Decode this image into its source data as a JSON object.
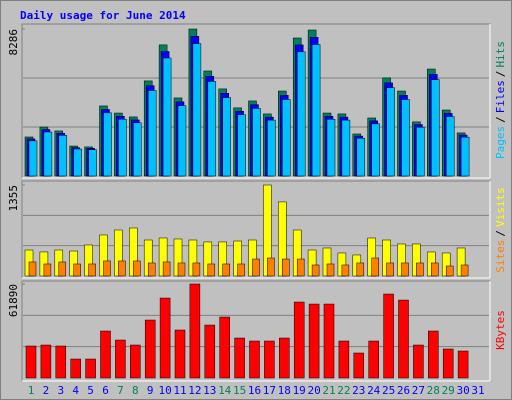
{
  "chart_data": [
    {
      "type": "bar",
      "title": "Daily usage for June 2014",
      "legend_separator": "/",
      "ylim": [
        0,
        8286
      ],
      "yticks": [
        8286
      ],
      "series": [
        {
          "name": "Hits",
          "color": "#00805c",
          "values": [
            2200,
            2760,
            2540,
            1690,
            1640,
            3950,
            3550,
            3330,
            5360,
            7390,
            4400,
            8286,
            5920,
            4910,
            3840,
            4230,
            3500,
            4790,
            7780,
            8230,
            3550,
            3500,
            2370,
            3270,
            5530,
            4790,
            3050,
            6030,
            3720,
            2430,
            null
          ]
        },
        {
          "name": "Files",
          "color": "#0000ff",
          "values": [
            2090,
            2620,
            2410,
            1600,
            1560,
            3750,
            3370,
            3160,
            5090,
            7020,
            4180,
            7870,
            5620,
            4660,
            3650,
            4020,
            3320,
            4550,
            7390,
            7820,
            3370,
            3320,
            2250,
            3110,
            5250,
            4550,
            2900,
            5730,
            3530,
            2310,
            null
          ]
        },
        {
          "name": "Pages",
          "color": "#00c0ff",
          "values": [
            1980,
            2480,
            2290,
            1520,
            1480,
            3560,
            3200,
            3000,
            4820,
            6650,
            3960,
            7460,
            5330,
            4420,
            3460,
            3810,
            3150,
            4310,
            7000,
            7410,
            3200,
            3150,
            2130,
            2940,
            4980,
            4310,
            2750,
            5430,
            3350,
            2190,
            null
          ]
        }
      ]
    },
    {
      "type": "bar",
      "ylim": [
        0,
        1355
      ],
      "yticks": [
        1355
      ],
      "series": [
        {
          "name": "Visits",
          "color": "#ffff00",
          "values": [
            387,
            358,
            387,
            372,
            462,
            611,
            685,
            715,
            536,
            566,
            551,
            536,
            507,
            507,
            521,
            536,
            1355,
            1103,
            685,
            387,
            417,
            343,
            313,
            566,
            536,
            477,
            477,
            358,
            343,
            417,
            null
          ]
        },
        {
          "name": "Sites",
          "color": "#ff8000",
          "values": [
            209,
            179,
            209,
            179,
            179,
            224,
            224,
            224,
            194,
            209,
            194,
            194,
            179,
            179,
            179,
            253,
            268,
            253,
            253,
            164,
            179,
            164,
            194,
            268,
            194,
            194,
            194,
            194,
            149,
            164,
            null
          ]
        }
      ]
    },
    {
      "type": "bar",
      "ylim": [
        0,
        61890
      ],
      "yticks": [
        61890
      ],
      "categories": [
        "1",
        "2",
        "3",
        "4",
        "5",
        "6",
        "7",
        "8",
        "9",
        "10",
        "11",
        "12",
        "13",
        "14",
        "15",
        "16",
        "17",
        "18",
        "19",
        "20",
        "21",
        "22",
        "23",
        "24",
        "25",
        "26",
        "27",
        "28",
        "29",
        "30",
        "31"
      ],
      "category_colors": [
        "#00805c",
        "#0000ff",
        "#0000ff",
        "#0000ff",
        "#0000ff",
        "#0000ff",
        "#00805c",
        "#00805c",
        "#0000ff",
        "#0000ff",
        "#0000ff",
        "#0000ff",
        "#0000ff",
        "#00805c",
        "#00805c",
        "#0000ff",
        "#0000ff",
        "#0000ff",
        "#0000ff",
        "#0000ff",
        "#00805c",
        "#00805c",
        "#0000ff",
        "#0000ff",
        "#0000ff",
        "#0000ff",
        "#0000ff",
        "#00805c",
        "#00805c",
        "#0000ff",
        "#0000ff"
      ],
      "series": [
        {
          "name": "KBytes",
          "color": "#ff0000",
          "values": [
            21060,
            21710,
            21060,
            12500,
            12500,
            30930,
            25000,
            21710,
            38160,
            52640,
            31580,
            61890,
            34870,
            40140,
            26320,
            24350,
            24350,
            26320,
            50010,
            48690,
            48690,
            24350,
            16450,
            24350,
            55270,
            51320,
            21710,
            30930,
            19080,
            17770,
            null
          ]
        }
      ]
    }
  ]
}
